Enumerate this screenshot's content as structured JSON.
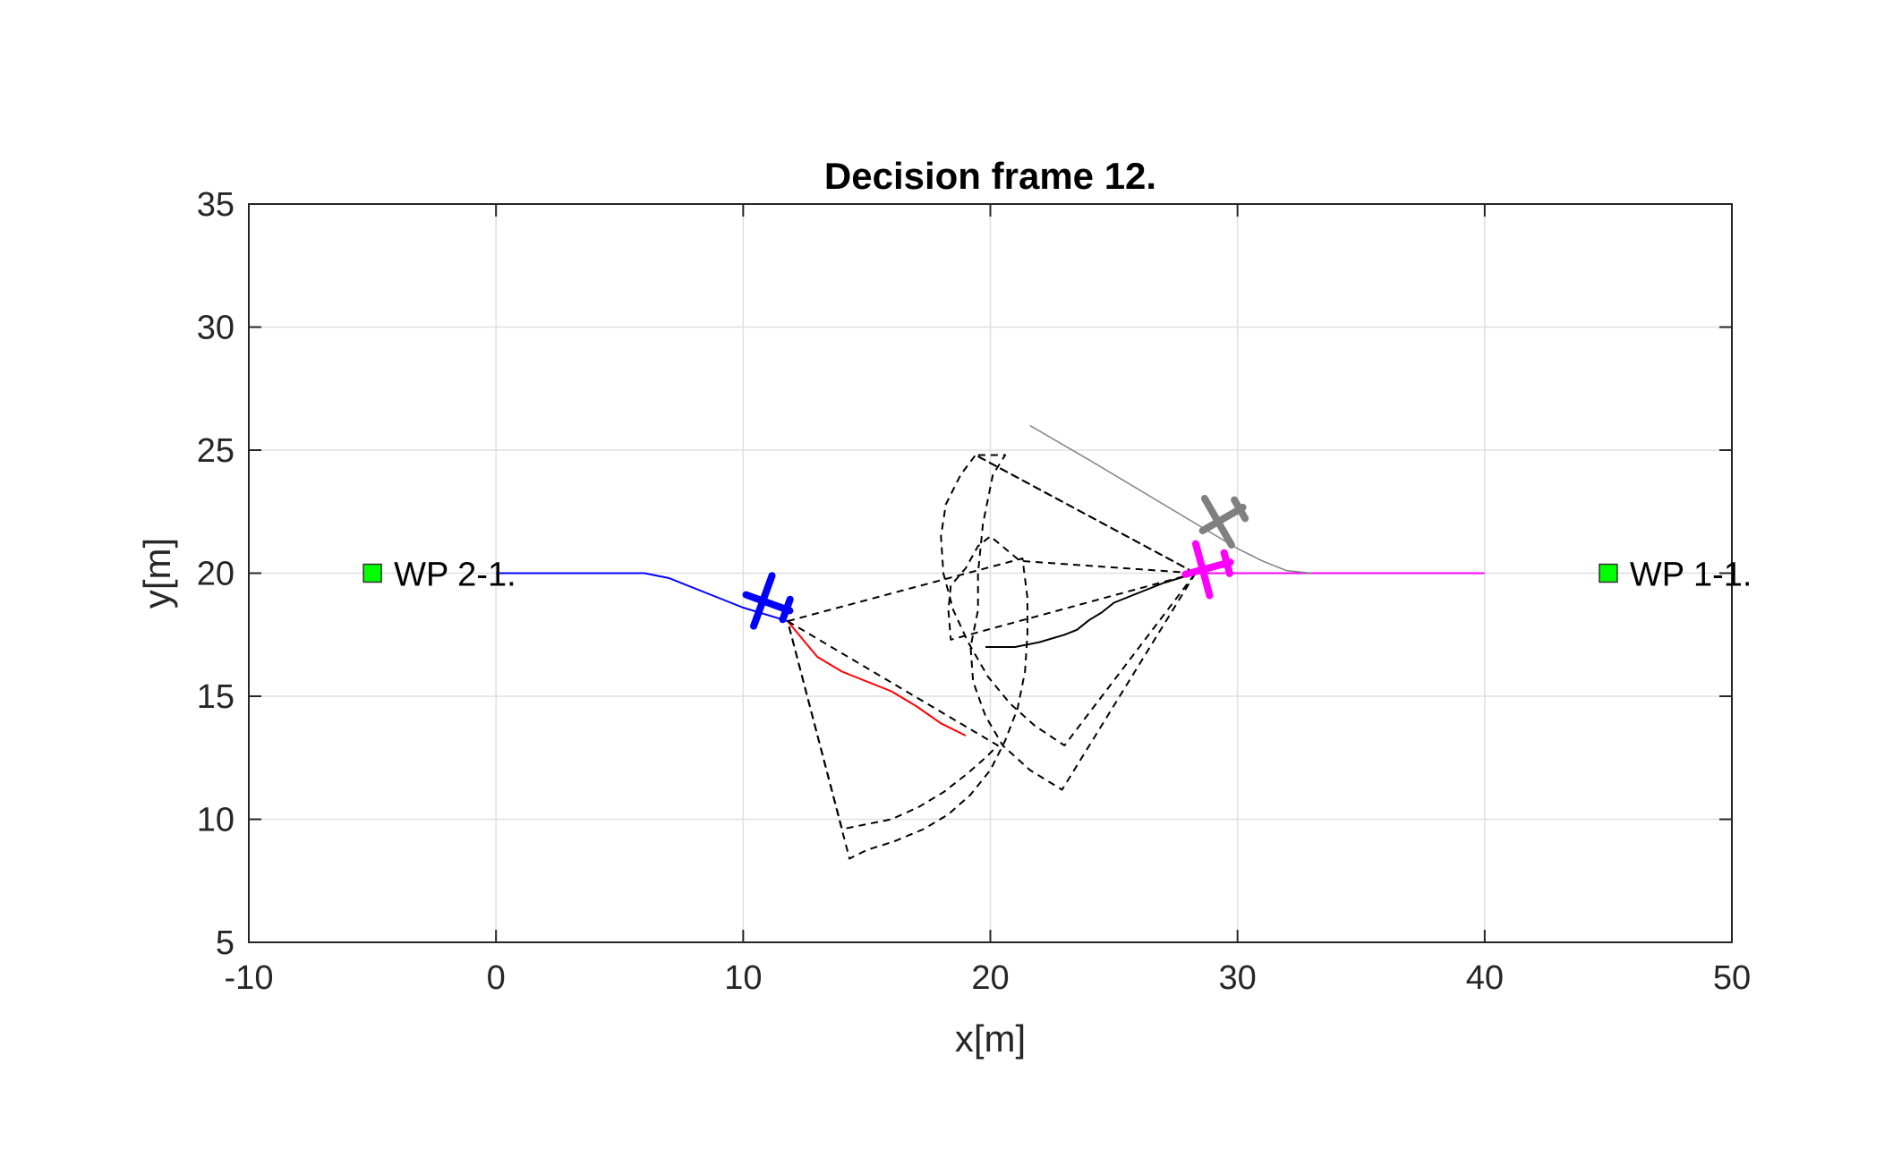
{
  "chart_data": {
    "type": "scatter",
    "title": "Decision frame 12.",
    "xlabel": "x[m]",
    "ylabel": "y[m]",
    "xlim": [
      -10,
      50
    ],
    "ylim": [
      5,
      35
    ],
    "xticks": [
      -10,
      0,
      10,
      20,
      30,
      40,
      50
    ],
    "yticks": [
      5,
      10,
      15,
      20,
      25,
      30,
      35
    ],
    "xtick_labels": [
      "-10",
      "0",
      "10",
      "20",
      "30",
      "40",
      "50"
    ],
    "ytick_labels": [
      "5",
      "10",
      "15",
      "20",
      "25",
      "30",
      "35"
    ],
    "grid": true,
    "waypoints": [
      {
        "label": "WP 2-1.",
        "x": -5,
        "y": 20,
        "color": "#00ff00"
      },
      {
        "label": "WP 1-1.",
        "x": 45,
        "y": 20,
        "color": "#00ff00"
      }
    ],
    "series": [
      {
        "color": "#0000ff",
        "style": "solid",
        "points": [
          [
            0,
            20
          ],
          [
            6,
            20
          ],
          [
            7,
            19.8
          ],
          [
            8,
            19.4
          ],
          [
            9,
            19
          ],
          [
            10,
            18.6
          ],
          [
            11,
            18.3
          ],
          [
            11.8,
            18.05
          ]
        ]
      },
      {
        "color": "#ff0000",
        "style": "solid",
        "points": [
          [
            11.8,
            18.05
          ],
          [
            12.5,
            17.2
          ],
          [
            13,
            16.6
          ],
          [
            14,
            16
          ],
          [
            15,
            15.6
          ],
          [
            16,
            15.2
          ],
          [
            17,
            14.6
          ],
          [
            18,
            13.9
          ],
          [
            19,
            13.4
          ]
        ]
      },
      {
        "color": "#ff00ff",
        "style": "solid",
        "points": [
          [
            28.3,
            20
          ],
          [
            40,
            20
          ]
        ]
      },
      {
        "color": "#000000",
        "style": "solid",
        "points": [
          [
            28.3,
            20
          ],
          [
            27,
            19.6
          ],
          [
            26,
            19.2
          ],
          [
            25,
            18.8
          ],
          [
            24.5,
            18.4
          ],
          [
            24,
            18.1
          ],
          [
            23.5,
            17.7
          ],
          [
            23,
            17.5
          ],
          [
            22,
            17.2
          ],
          [
            21,
            17.0
          ],
          [
            19.8,
            17.0
          ]
        ]
      },
      {
        "color": "#808080",
        "style": "solid",
        "points": [
          [
            21.6,
            26
          ],
          [
            24,
            24.6
          ],
          [
            26,
            23.4
          ],
          [
            28,
            22.2
          ],
          [
            30,
            21
          ],
          [
            31,
            20.5
          ],
          [
            32,
            20.1
          ],
          [
            33,
            20
          ]
        ]
      },
      {
        "color": "#000000",
        "style": "dashed",
        "points": [
          [
            11.8,
            18.05
          ],
          [
            21.3,
            20.6
          ],
          [
            21.5,
            19
          ],
          [
            21.5,
            17.5
          ],
          [
            21.4,
            16
          ],
          [
            21.1,
            14.5
          ],
          [
            20.6,
            13.2
          ],
          [
            20,
            12
          ],
          [
            19.2,
            11
          ],
          [
            18.3,
            10.2
          ],
          [
            17.3,
            9.6
          ],
          [
            16.1,
            9.1
          ],
          [
            15,
            8.75
          ],
          [
            14.3,
            8.4
          ],
          [
            11.8,
            18.05
          ]
        ]
      },
      {
        "color": "#000000",
        "style": "dashed",
        "points": [
          [
            11.8,
            18.05
          ],
          [
            20.3,
            13
          ],
          [
            19.8,
            12.5
          ],
          [
            19,
            11.8
          ],
          [
            18.1,
            11.1
          ],
          [
            17.1,
            10.5
          ],
          [
            16,
            10
          ],
          [
            14,
            9.6
          ],
          [
            11.8,
            18.05
          ]
        ]
      },
      {
        "color": "#000000",
        "style": "dashed",
        "points": [
          [
            28.3,
            20
          ],
          [
            18.4,
            17.3
          ],
          [
            18.3,
            18.5
          ],
          [
            18.4,
            19.5
          ],
          [
            19,
            20.2
          ],
          [
            19.5,
            21.1
          ],
          [
            20,
            21.5
          ],
          [
            21.2,
            20.5
          ],
          [
            28.3,
            20
          ]
        ]
      },
      {
        "color": "#000000",
        "style": "dashed",
        "points": [
          [
            28.3,
            20
          ],
          [
            19.4,
            24.8
          ],
          [
            18.8,
            24
          ],
          [
            18.2,
            22.8
          ],
          [
            18.0,
            21.5
          ],
          [
            18.1,
            20
          ],
          [
            18.5,
            18.5
          ],
          [
            19.1,
            17.2
          ],
          [
            19.9,
            15.8
          ],
          [
            20.8,
            14.7
          ],
          [
            21.8,
            13.8
          ],
          [
            23,
            13
          ],
          [
            28.3,
            20
          ]
        ]
      },
      {
        "color": "#000000",
        "style": "dashed",
        "points": [
          [
            28.3,
            20
          ],
          [
            22.9,
            11.2
          ],
          [
            21.6,
            12
          ],
          [
            20.5,
            13
          ],
          [
            19.8,
            14.2
          ],
          [
            19.3,
            15.6
          ],
          [
            19.2,
            17
          ],
          [
            19.5,
            18.5
          ],
          [
            19.5,
            20
          ],
          [
            19.7,
            22
          ],
          [
            20.1,
            24
          ],
          [
            20.6,
            24.8
          ],
          [
            19.4,
            24.8
          ],
          [
            28.3,
            20
          ]
        ]
      }
    ],
    "aircraft": [
      {
        "color": "#0000ff",
        "x": 11,
        "y": 18.8,
        "heading_deg": 200
      },
      {
        "color": "#ff00ff",
        "x": 28.8,
        "y": 20.2,
        "heading_deg": 165
      },
      {
        "color": "#808080",
        "x": 29.4,
        "y": 22.2,
        "heading_deg": 150
      }
    ]
  }
}
